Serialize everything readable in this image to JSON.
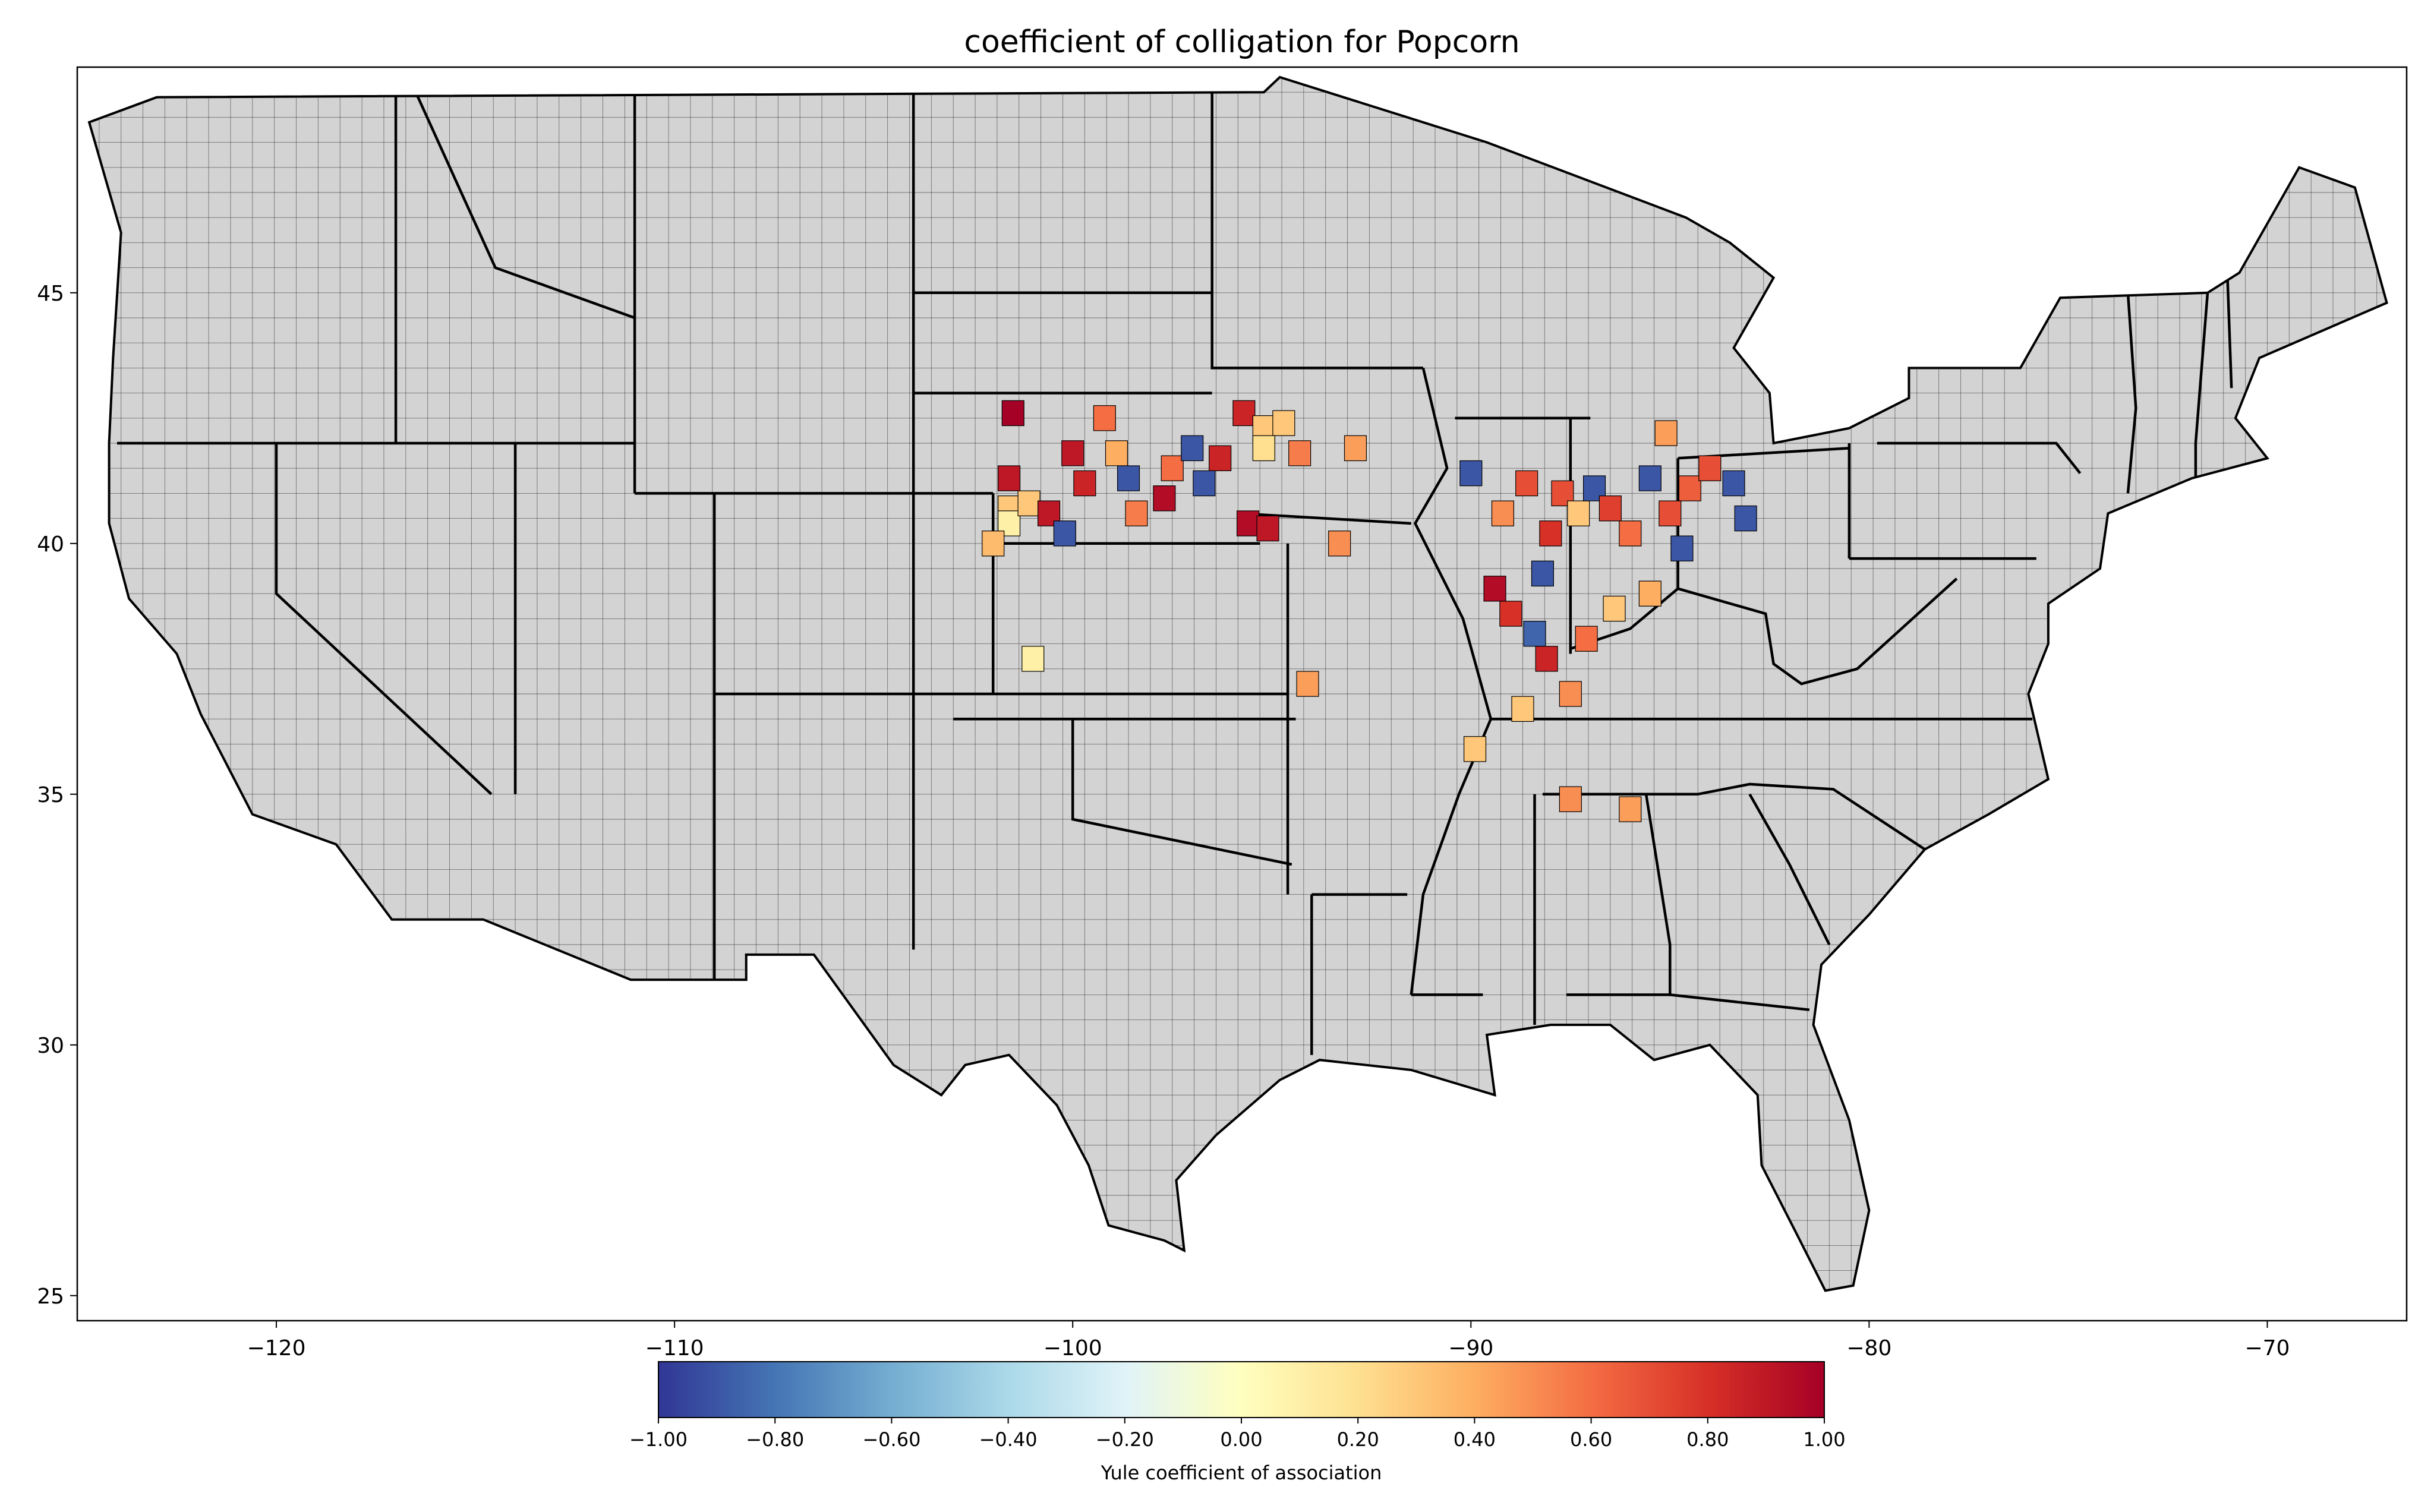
{
  "title": "coefficient of colligation for Popcorn",
  "map": {
    "region": "Contiguous United States (county level)",
    "lon_range": [
      -125,
      -66.5
    ],
    "lat_range": [
      24.5,
      49.5
    ],
    "x_ticks": [
      -120,
      -110,
      -100,
      -90,
      -80,
      -70
    ],
    "x_tick_labels": [
      "−120",
      "−110",
      "−100",
      "−90",
      "−80",
      "−70"
    ],
    "y_ticks": [
      25,
      30,
      35,
      40,
      45
    ],
    "y_tick_labels": [
      "25",
      "30",
      "35",
      "40",
      "45"
    ],
    "no_data_color": "#d3d3d3",
    "border_color": "#000000"
  },
  "colorbar": {
    "label": "Yule coefficient of association",
    "range": [
      -1,
      1
    ],
    "tick_values": [
      -1,
      -0.8,
      -0.6,
      -0.4,
      -0.2,
      0,
      0.2,
      0.4,
      0.6,
      0.8,
      1
    ],
    "tick_labels": [
      "−1.00",
      "−0.80",
      "−0.60",
      "−0.40",
      "−0.20",
      "0.00",
      "0.20",
      "0.40",
      "0.60",
      "0.80",
      "1.00"
    ],
    "colormap": "RdYlBu_r",
    "stops": [
      "#313695",
      "#4575b4",
      "#74add1",
      "#abd9e9",
      "#e0f3f8",
      "#ffffbf",
      "#fee090",
      "#fdae61",
      "#f46d43",
      "#d73027",
      "#a50026"
    ]
  },
  "chart_data": {
    "type": "choropleth",
    "value_name": "Yule coefficient of association",
    "note_color_values_estimated": true,
    "counties": [
      {
        "lon": -101.5,
        "lat": 42.6,
        "value": 1.0
      },
      {
        "lon": -100.0,
        "lat": 41.8,
        "value": 0.9
      },
      {
        "lon": -101.6,
        "lat": 41.3,
        "value": 0.9
      },
      {
        "lon": -101.6,
        "lat": 40.7,
        "value": 0.3
      },
      {
        "lon": -101.6,
        "lat": 40.4,
        "value": 0.1
      },
      {
        "lon": -102.0,
        "lat": 40.0,
        "value": 0.35
      },
      {
        "lon": -101.1,
        "lat": 40.8,
        "value": 0.3
      },
      {
        "lon": -100.6,
        "lat": 40.6,
        "value": 0.9
      },
      {
        "lon": -100.2,
        "lat": 40.2,
        "value": -0.9
      },
      {
        "lon": -99.7,
        "lat": 41.2,
        "value": 0.85
      },
      {
        "lon": -99.2,
        "lat": 42.5,
        "value": 0.6
      },
      {
        "lon": -98.9,
        "lat": 41.8,
        "value": 0.4
      },
      {
        "lon": -98.6,
        "lat": 41.3,
        "value": -0.9
      },
      {
        "lon": -98.4,
        "lat": 40.6,
        "value": 0.55
      },
      {
        "lon": -97.7,
        "lat": 40.9,
        "value": 0.95
      },
      {
        "lon": -97.5,
        "lat": 41.5,
        "value": 0.6
      },
      {
        "lon": -97.0,
        "lat": 41.9,
        "value": -0.9
      },
      {
        "lon": -96.7,
        "lat": 41.2,
        "value": -0.9
      },
      {
        "lon": -96.3,
        "lat": 41.7,
        "value": 0.85
      },
      {
        "lon": -95.7,
        "lat": 42.6,
        "value": 0.85
      },
      {
        "lon": -95.2,
        "lat": 42.3,
        "value": 0.3
      },
      {
        "lon": -94.7,
        "lat": 42.4,
        "value": 0.3
      },
      {
        "lon": -95.2,
        "lat": 41.9,
        "value": 0.2
      },
      {
        "lon": -95.6,
        "lat": 40.4,
        "value": 0.95
      },
      {
        "lon": -95.1,
        "lat": 40.3,
        "value": 0.9
      },
      {
        "lon": -94.3,
        "lat": 41.8,
        "value": 0.55
      },
      {
        "lon": -92.9,
        "lat": 41.9,
        "value": 0.45
      },
      {
        "lon": -93.3,
        "lat": 40.0,
        "value": 0.5
      },
      {
        "lon": -94.1,
        "lat": 37.2,
        "value": 0.45
      },
      {
        "lon": -101.0,
        "lat": 37.7,
        "value": 0.1
      },
      {
        "lon": -90.0,
        "lat": 41.4,
        "value": -0.9
      },
      {
        "lon": -89.2,
        "lat": 40.6,
        "value": 0.5
      },
      {
        "lon": -88.6,
        "lat": 41.2,
        "value": 0.7
      },
      {
        "lon": -88.0,
        "lat": 40.2,
        "value": 0.8
      },
      {
        "lon": -88.2,
        "lat": 39.4,
        "value": -0.9
      },
      {
        "lon": -89.4,
        "lat": 39.1,
        "value": 0.95
      },
      {
        "lon": -89.0,
        "lat": 38.6,
        "value": 0.8
      },
      {
        "lon": -88.4,
        "lat": 38.2,
        "value": -0.85
      },
      {
        "lon": -88.1,
        "lat": 37.7,
        "value": 0.85
      },
      {
        "lon": -87.7,
        "lat": 41.0,
        "value": 0.7
      },
      {
        "lon": -87.3,
        "lat": 40.6,
        "value": 0.3
      },
      {
        "lon": -86.9,
        "lat": 41.1,
        "value": -0.9
      },
      {
        "lon": -86.5,
        "lat": 40.7,
        "value": 0.75
      },
      {
        "lon": -86.0,
        "lat": 40.2,
        "value": 0.6
      },
      {
        "lon": -85.5,
        "lat": 41.3,
        "value": -0.9
      },
      {
        "lon": -85.0,
        "lat": 40.6,
        "value": 0.7
      },
      {
        "lon": -84.5,
        "lat": 41.1,
        "value": 0.65
      },
      {
        "lon": -84.0,
        "lat": 41.5,
        "value": 0.7
      },
      {
        "lon": -83.4,
        "lat": 41.2,
        "value": -0.9
      },
      {
        "lon": -83.1,
        "lat": 40.5,
        "value": -0.9
      },
      {
        "lon": -84.7,
        "lat": 39.9,
        "value": -0.9
      },
      {
        "lon": -85.5,
        "lat": 39.0,
        "value": 0.4
      },
      {
        "lon": -86.4,
        "lat": 38.7,
        "value": 0.3
      },
      {
        "lon": -87.1,
        "lat": 38.1,
        "value": 0.6
      },
      {
        "lon": -87.5,
        "lat": 37.0,
        "value": 0.5
      },
      {
        "lon": -88.7,
        "lat": 36.7,
        "value": 0.3
      },
      {
        "lon": -89.9,
        "lat": 35.9,
        "value": 0.3
      },
      {
        "lon": -87.5,
        "lat": 34.9,
        "value": 0.5
      },
      {
        "lon": -86.0,
        "lat": 34.7,
        "value": 0.45
      },
      {
        "lon": -85.1,
        "lat": 42.2,
        "value": 0.45
      }
    ]
  }
}
